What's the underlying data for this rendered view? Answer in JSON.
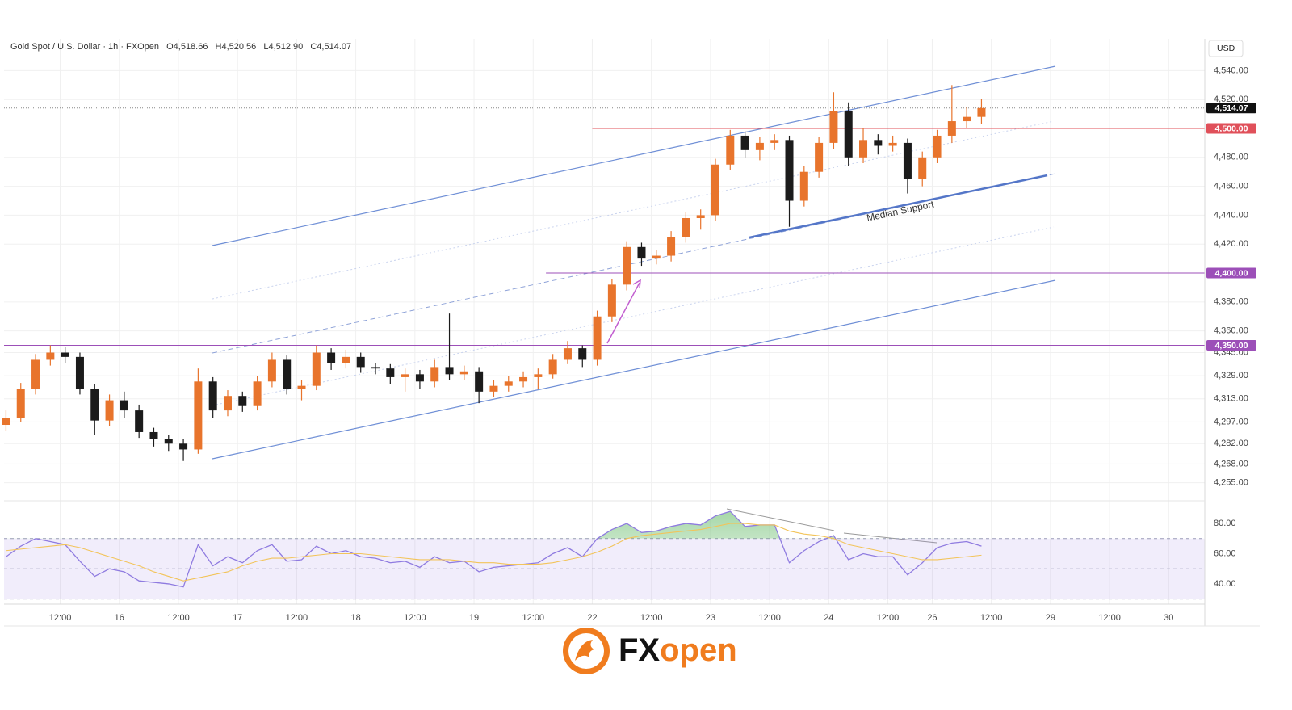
{
  "chart_data": [
    {
      "type": "candlestick",
      "title": "Gold Spot / U.S. Dollar · 1h · FXOpen",
      "ohlc_labels": [
        "O4,518.66",
        "H4,520.56",
        "L4,512.90",
        "C4,514.07"
      ],
      "currency": "USD",
      "annotation": "Median Support",
      "up_color": "#e8742c",
      "down_color": "#1b1b1b",
      "x": [
        -23,
        -20,
        -17,
        -14,
        -11,
        -8,
        -5,
        -2,
        1,
        4,
        7,
        10,
        13,
        16,
        19,
        22,
        25,
        28,
        31,
        34,
        37,
        40,
        43,
        46,
        49,
        52,
        55,
        58,
        61,
        64,
        67,
        70,
        73,
        76,
        79,
        82,
        85,
        88,
        91,
        94,
        97,
        100,
        103,
        106,
        109,
        112,
        115,
        118,
        121,
        124,
        127,
        130,
        133,
        136,
        139,
        142,
        145,
        148,
        151,
        154,
        157,
        160,
        163,
        166,
        169,
        172,
        175
      ],
      "open": [
        4295,
        4300,
        4320,
        4340,
        4345,
        4342,
        4320,
        4298,
        4312,
        4305,
        4290,
        4285,
        4282,
        4278,
        4325,
        4305,
        4315,
        4308,
        4325,
        4340,
        4320,
        4322,
        4345,
        4338,
        4342,
        4335,
        4334,
        4328,
        4330,
        4325,
        4335,
        4330,
        4332,
        4318,
        4322,
        4325,
        4328,
        4330,
        4340,
        4348,
        4340,
        4370,
        4392,
        4418,
        4410,
        4412,
        4425,
        4438,
        4440,
        4475,
        4495,
        4485,
        4490,
        4492,
        4450,
        4470,
        4490,
        4512,
        4480,
        4492,
        4488,
        4490,
        4465,
        4480,
        4495,
        4505,
        4508
      ],
      "high": [
        4305,
        4324,
        4344,
        4350,
        4349,
        4345,
        4323,
        4316,
        4318,
        4309,
        4293,
        4288,
        4285,
        4334,
        4328,
        4319,
        4318,
        4329,
        4345,
        4343,
        4326,
        4350,
        4348,
        4347,
        4345,
        4338,
        4337,
        4334,
        4333,
        4340,
        4372,
        4336,
        4335,
        4326,
        4329,
        4332,
        4334,
        4344,
        4353,
        4350,
        4374,
        4396,
        4422,
        4421,
        4416,
        4429,
        4442,
        4444,
        4479,
        4499,
        4498,
        4494,
        4496,
        4495,
        4474,
        4494,
        4525,
        4518,
        4500,
        4496,
        4495,
        4493,
        4484,
        4499,
        4530,
        4515,
        4520.56
      ],
      "low": [
        4291,
        4297,
        4316,
        4336,
        4338,
        4316,
        4288,
        4294,
        4300,
        4286,
        4280,
        4277,
        4270,
        4275,
        4300,
        4301,
        4304,
        4305,
        4321,
        4316,
        4312,
        4319,
        4333,
        4334,
        4331,
        4330,
        4323,
        4318,
        4320,
        4321,
        4326,
        4326,
        4310,
        4314,
        4318,
        4321,
        4320,
        4327,
        4337,
        4335,
        4336,
        4366,
        4388,
        4405,
        4406,
        4408,
        4421,
        4430,
        4436,
        4471,
        4480,
        4478,
        4485,
        4432,
        4446,
        4466,
        4486,
        4474,
        4476,
        4482,
        4484,
        4455,
        4460,
        4476,
        4490,
        4500,
        4503
      ],
      "close": [
        4300,
        4320,
        4340,
        4345,
        4342,
        4320,
        4298,
        4312,
        4305,
        4290,
        4285,
        4282,
        4278,
        4325,
        4305,
        4315,
        4308,
        4325,
        4340,
        4320,
        4322,
        4345,
        4338,
        4342,
        4335,
        4334,
        4328,
        4330,
        4325,
        4335,
        4330,
        4332,
        4318,
        4322,
        4325,
        4328,
        4330,
        4340,
        4348,
        4340,
        4370,
        4392,
        4418,
        4410,
        4412,
        4425,
        4438,
        4440,
        4475,
        4495,
        4485,
        4490,
        4492,
        4450,
        4470,
        4490,
        4512,
        4480,
        4492,
        4488,
        4490,
        4465,
        4480,
        4495,
        4505,
        4508,
        4514.07
      ],
      "last_price": {
        "value": 4514.07,
        "label": "4,514.07"
      },
      "levels": [
        {
          "value": 4500,
          "label": "4,500.00",
          "color": "#e0505a"
        },
        {
          "value": 4400,
          "label": "4,400.00",
          "color": "#9c4fb8"
        },
        {
          "value": 4350,
          "label": "4,350.00",
          "color": "#9c4fb8"
        }
      ],
      "xlim": [
        -23.4,
        220
      ],
      "ylim": [
        4242.5,
        4562
      ],
      "yticks": [
        {
          "value": 4255,
          "label": "4,255.00"
        },
        {
          "value": 4268,
          "label": "4,268.00"
        },
        {
          "value": 4282,
          "label": "4,282.00"
        },
        {
          "value": 4297,
          "label": "4,297.00"
        },
        {
          "value": 4313,
          "label": "4,313.00"
        },
        {
          "value": 4329,
          "label": "4,329.00"
        },
        {
          "value": 4345,
          "label": "4,345.00"
        },
        {
          "value": 4360,
          "label": "4,360.00"
        },
        {
          "value": 4380,
          "label": "4,380.00"
        },
        {
          "value": 4420,
          "label": "4,420.00"
        },
        {
          "value": 4440,
          "label": "4,440.00"
        },
        {
          "value": 4460,
          "label": "4,460.00"
        },
        {
          "value": 4480,
          "label": "4,480.00"
        },
        {
          "value": 4520,
          "label": "4,520.00"
        },
        {
          "value": 4540,
          "label": "4,540.00"
        }
      ],
      "grid": true
    },
    {
      "type": "line",
      "x": [
        -23,
        -20,
        -17,
        -14,
        -11,
        -8,
        -5,
        -2,
        1,
        4,
        7,
        10,
        13,
        16,
        19,
        22,
        25,
        28,
        31,
        34,
        37,
        40,
        43,
        46,
        49,
        52,
        55,
        58,
        61,
        64,
        67,
        70,
        73,
        76,
        79,
        82,
        85,
        88,
        91,
        94,
        97,
        100,
        103,
        106,
        109,
        112,
        115,
        118,
        121,
        124,
        127,
        130,
        133,
        136,
        139,
        142,
        145,
        148,
        151,
        154,
        157,
        160,
        163,
        166,
        169,
        172,
        175
      ],
      "series": [
        {
          "color": "#8f7be0",
          "values": [
            58,
            65,
            70,
            68,
            66,
            55,
            45,
            50,
            48,
            42,
            41,
            40,
            38,
            66,
            52,
            58,
            54,
            62,
            66,
            55,
            56,
            65,
            60,
            62,
            58,
            57,
            54,
            55,
            51,
            58,
            54,
            55,
            48,
            51,
            52,
            53,
            54,
            60,
            64,
            58,
            70,
            76,
            80,
            74,
            75,
            78,
            80,
            79,
            85,
            88,
            78,
            79,
            79,
            54,
            62,
            68,
            72,
            56,
            60,
            58,
            58,
            46,
            54,
            64,
            67,
            68,
            65
          ]
        },
        {
          "color": "#f2c45a",
          "values": [
            62,
            63,
            64,
            65,
            66,
            64,
            61,
            58,
            55,
            52,
            48,
            45,
            42,
            44,
            46,
            48,
            52,
            55,
            57,
            57,
            58,
            59,
            60,
            60,
            60,
            59,
            58,
            57,
            56,
            56,
            56,
            55,
            54,
            54,
            53,
            53,
            53,
            54,
            56,
            58,
            61,
            65,
            70,
            72,
            73,
            74,
            75,
            76,
            78,
            80,
            80,
            79,
            79,
            75,
            73,
            72,
            70,
            66,
            64,
            62,
            60,
            58,
            56,
            56,
            57,
            58,
            59
          ]
        }
      ],
      "band": [
        30,
        50,
        70
      ],
      "xlim": [
        -23.4,
        220
      ],
      "ylim": [
        26.6,
        95
      ],
      "xticks": [
        {
          "value": -12,
          "label": "12:00"
        },
        {
          "value": 0,
          "label": "16"
        },
        {
          "value": 12,
          "label": "12:00"
        },
        {
          "value": 24,
          "label": "17"
        },
        {
          "value": 36,
          "label": "12:00"
        },
        {
          "value": 48,
          "label": "18"
        },
        {
          "value": 60,
          "label": "12:00"
        },
        {
          "value": 72,
          "label": "19"
        },
        {
          "value": 84,
          "label": "12:00"
        },
        {
          "value": 96,
          "label": "22"
        },
        {
          "value": 108,
          "label": "12:00"
        },
        {
          "value": 120,
          "label": "23"
        },
        {
          "value": 132,
          "label": "12:00"
        },
        {
          "value": 144,
          "label": "24"
        },
        {
          "value": 156,
          "label": "12:00"
        },
        {
          "value": 165,
          "label": "26"
        },
        {
          "value": 177,
          "label": "12:00"
        },
        {
          "value": 189,
          "label": "29"
        },
        {
          "value": 201,
          "label": "12:00"
        },
        {
          "value": 213,
          "label": "30"
        }
      ],
      "yticks": [
        {
          "value": 40,
          "label": "40.00"
        },
        {
          "value": 60,
          "label": "60.00"
        },
        {
          "value": 80,
          "label": "80.00"
        }
      ]
    }
  ],
  "footer": {
    "logo": [
      "FX",
      "open"
    ]
  }
}
